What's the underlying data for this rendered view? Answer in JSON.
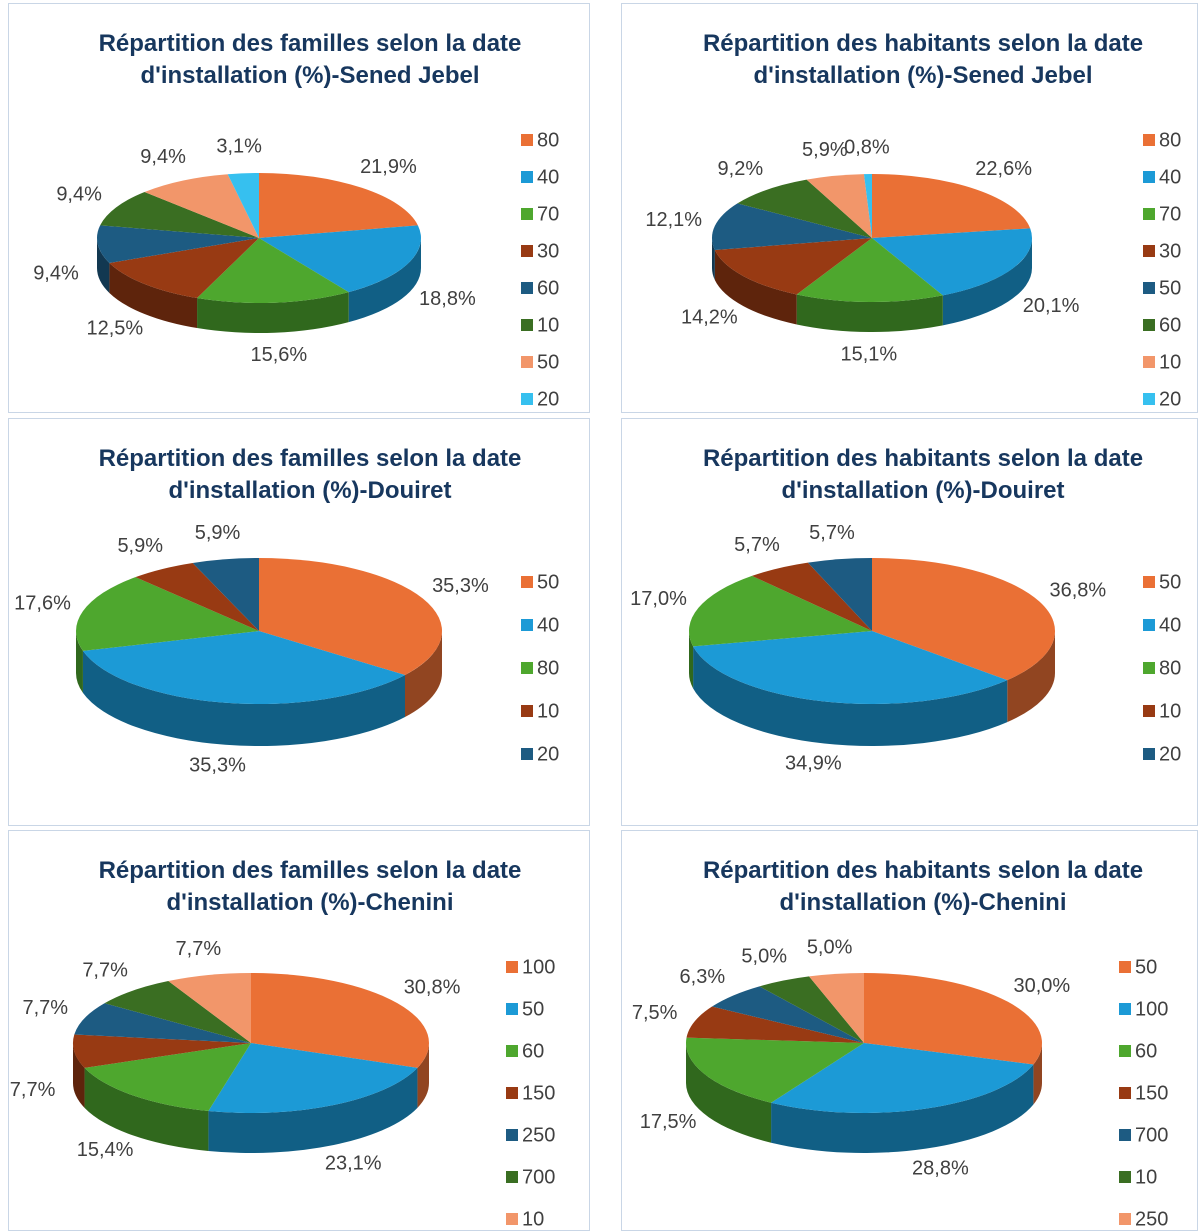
{
  "chart_data": [
    {
      "type": "pie3d",
      "title": "Répartition des familles selon la date d'installation (%)-Sened Jebel",
      "categories": [
        "80",
        "40",
        "70",
        "30",
        "60",
        "10",
        "50",
        "20"
      ],
      "values": [
        21.9,
        18.8,
        15.6,
        12.5,
        9.4,
        9.4,
        9.4,
        3.1
      ],
      "value_labels": [
        "21,9%",
        "18,8%",
        "15,6%",
        "12,5%",
        "9,4%",
        "9,4%",
        "9,4%",
        "3,1%"
      ],
      "colors": [
        "#ea7035",
        "#1c9ad6",
        "#4ea72e",
        "#983a13",
        "#1d5b82",
        "#3a6e22",
        "#f2966a",
        "#36c0ef"
      ]
    },
    {
      "type": "pie3d",
      "title": "Répartition des habitants selon la date d'installation (%)-Sened Jebel",
      "categories": [
        "80",
        "40",
        "70",
        "30",
        "50",
        "60",
        "10",
        "20"
      ],
      "values": [
        22.6,
        20.1,
        15.1,
        14.2,
        12.1,
        9.2,
        5.9,
        0.8
      ],
      "value_labels": [
        "22,6%",
        "20,1%",
        "15,1%",
        "14,2%",
        "12,1%",
        "9,2%",
        "5,9%",
        "0,8%"
      ],
      "colors": [
        "#ea7035",
        "#1c9ad6",
        "#4ea72e",
        "#983a13",
        "#1d5b82",
        "#3a6e22",
        "#f2966a",
        "#36c0ef"
      ]
    },
    {
      "type": "pie3d",
      "title": "Répartition des familles selon la date d'installation (%)-Douiret",
      "categories": [
        "50",
        "40",
        "80",
        "10",
        "20"
      ],
      "values": [
        35.3,
        35.3,
        17.6,
        5.9,
        5.9
      ],
      "value_labels": [
        "35,3%",
        "35,3%",
        "17,6%",
        "5,9%",
        "5,9%"
      ],
      "colors": [
        "#ea7035",
        "#1c9ad6",
        "#4ea72e",
        "#983a13",
        "#1d5b82"
      ]
    },
    {
      "type": "pie3d",
      "title": "Répartition des habitants selon la date d'installation (%)-Douiret",
      "categories": [
        "50",
        "40",
        "80",
        "10",
        "20"
      ],
      "values": [
        36.8,
        34.9,
        17.0,
        5.7,
        5.7
      ],
      "value_labels": [
        "36,8%",
        "34,9%",
        "17,0%",
        "5,7%",
        "5,7%"
      ],
      "colors": [
        "#ea7035",
        "#1c9ad6",
        "#4ea72e",
        "#983a13",
        "#1d5b82"
      ]
    },
    {
      "type": "pie3d",
      "title": "Répartition des familles selon la date d'installation (%)-Chenini",
      "categories": [
        "100",
        "50",
        "60",
        "150",
        "250",
        "700",
        "10"
      ],
      "values": [
        30.8,
        23.1,
        15.4,
        7.7,
        7.7,
        7.7,
        7.7
      ],
      "value_labels": [
        "30,8%",
        "23,1%",
        "15,4%",
        "7,7%",
        "7,7%",
        "7,7%",
        "7,7%"
      ],
      "colors": [
        "#ea7035",
        "#1c9ad6",
        "#4ea72e",
        "#983a13",
        "#1d5b82",
        "#3a6e22",
        "#f2966a"
      ]
    },
    {
      "type": "pie3d",
      "title": "Répartition des habitants selon la date d'installation (%)-Chenini",
      "categories": [
        "50",
        "100",
        "60",
        "150",
        "700",
        "10",
        "250"
      ],
      "values": [
        30.0,
        28.8,
        17.5,
        7.5,
        6.3,
        5.0,
        5.0
      ],
      "value_labels": [
        "30,0%",
        "28,8%",
        "17,5%",
        "7,5%",
        "6,3%",
        "5,0%",
        "5,0%"
      ],
      "colors": [
        "#ea7035",
        "#1c9ad6",
        "#4ea72e",
        "#983a13",
        "#1d5b82",
        "#3a6e22",
        "#f2966a"
      ]
    }
  ]
}
